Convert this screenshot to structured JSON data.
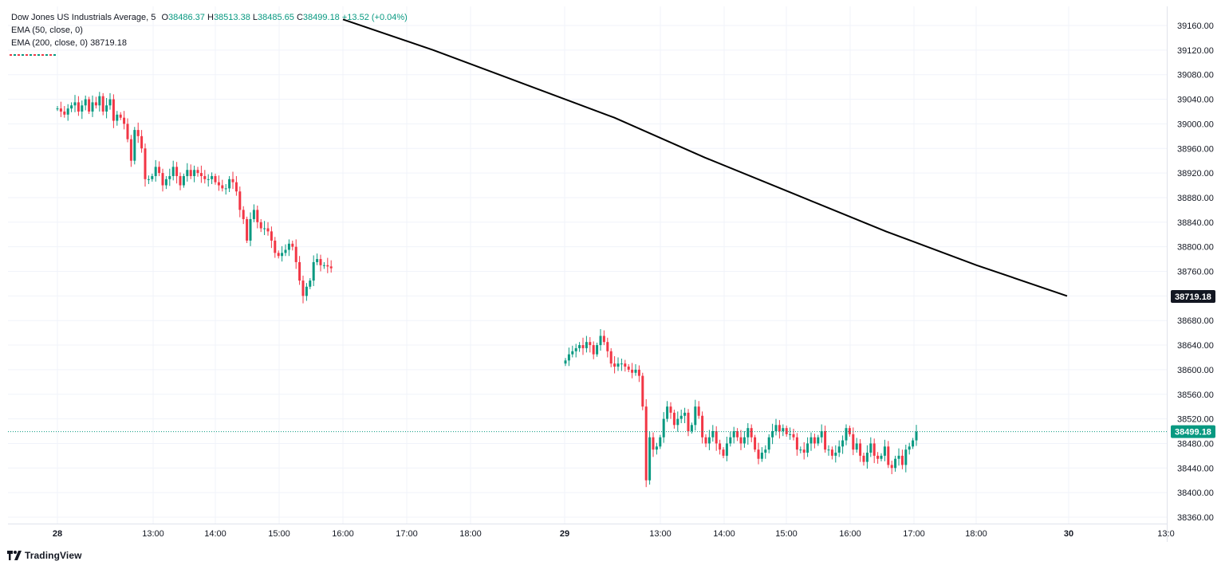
{
  "legend": {
    "symbol": "Dow Jones US Industrials Average, 5",
    "ohlc": {
      "o_label": "O",
      "o": "38486.37",
      "h_label": "H",
      "h": "38513.38",
      "l_label": "L",
      "l": "38485.65",
      "c_label": "C",
      "c": "38499.18",
      "change": "+13.52 (+0.04%)"
    },
    "ema50": {
      "label": "EMA (50, close, 0)",
      "value": ""
    },
    "ema200": {
      "label": "EMA (200, close, 0)",
      "value": "38719.18"
    }
  },
  "branding": {
    "name": "TradingView",
    "icon": "tradingview-logo-icon"
  },
  "colors": {
    "up": "#089981",
    "down": "#f23645",
    "ema200": "#000000",
    "grid": "#f0f3fa",
    "axis_text": "#131722",
    "price_line": "#089981"
  },
  "chart_data": {
    "type": "candlestick",
    "title": "Dow Jones US Industrials Average, 5",
    "ylim": [
      38340,
      39200
    ],
    "y_ticks": [
      38360,
      38400,
      38440,
      38480,
      38520,
      38560,
      38600,
      38640,
      38680,
      38720,
      38760,
      38800,
      38840,
      38880,
      38920,
      38960,
      39000,
      39040,
      39080,
      39120,
      39160
    ],
    "x_ticks": [
      {
        "label": "28",
        "day_label": true,
        "x": 0
      },
      {
        "label": "13:00",
        "x": 1
      },
      {
        "label": "14:00",
        "x": 2
      },
      {
        "label": "15:00",
        "x": 3
      },
      {
        "label": "16:00",
        "x": 4
      },
      {
        "label": "17:00",
        "x": 5
      },
      {
        "label": "18:00",
        "x": 6
      },
      {
        "label": "29",
        "day_label": true,
        "x": 7
      },
      {
        "label": "13:00",
        "x": 8
      },
      {
        "label": "14:00",
        "x": 9
      },
      {
        "label": "15:00",
        "x": 10
      },
      {
        "label": "16:00",
        "x": 11
      },
      {
        "label": "17:00",
        "x": 12
      },
      {
        "label": "18:00",
        "x": 13
      },
      {
        "label": "30",
        "day_label": true,
        "x": 14
      },
      {
        "label": "13:0",
        "x": 15
      }
    ],
    "price_badges": [
      {
        "name": "ema200-price-badge",
        "value": "38719.18",
        "y": 38719.18,
        "style": "dark"
      },
      {
        "name": "last-price-badge",
        "value": "38499.18",
        "y": 38499.18,
        "style": "green"
      }
    ],
    "last_price": 38499.18,
    "day1_closes": [
      39025,
      39020,
      39015,
      39025,
      39030,
      39035,
      39020,
      39030,
      39040,
      39020,
      39035,
      39030,
      39045,
      39020,
      39030,
      39040,
      39005,
      39015,
      39010,
      39000,
      38975,
      38940,
      38990,
      38980,
      38960,
      38910,
      38910,
      38915,
      38930,
      38920,
      38900,
      38910,
      38915,
      38930,
      38915,
      38900,
      38915,
      38925,
      38915,
      38925,
      38920,
      38915,
      38910,
      38910,
      38915,
      38905,
      38900,
      38895,
      38895,
      38910,
      38905,
      38890,
      38860,
      38845,
      38810,
      38845,
      38860,
      38840,
      38830,
      38830,
      38825,
      38810,
      38790,
      38785,
      38790,
      38795,
      38805,
      38800,
      38775,
      38745,
      38720,
      38735,
      38745,
      38775,
      38780,
      38770,
      38770,
      38768,
      38765
    ],
    "day2_closes": [
      38615,
      38625,
      38630,
      38635,
      38640,
      38635,
      38645,
      38640,
      38625,
      38640,
      38655,
      38645,
      38630,
      38610,
      38605,
      38610,
      38610,
      38605,
      38600,
      38595,
      38600,
      38590,
      38540,
      38420,
      38490,
      38470,
      38475,
      38490,
      38520,
      38540,
      38530,
      38510,
      38520,
      38525,
      38530,
      38500,
      38510,
      38540,
      38525,
      38490,
      38480,
      38490,
      38500,
      38480,
      38470,
      38460,
      38480,
      38490,
      38500,
      38490,
      38480,
      38490,
      38505,
      38490,
      38470,
      38455,
      38465,
      38470,
      38490,
      38500,
      38510,
      38500,
      38505,
      38495,
      38495,
      38490,
      38470,
      38470,
      38465,
      38480,
      38490,
      38480,
      38490,
      38500,
      38470,
      38470,
      38460,
      38465,
      38475,
      38485,
      38505,
      38495,
      38470,
      38480,
      38460,
      38450,
      38465,
      38480,
      38460,
      38455,
      38460,
      38475,
      38445,
      38440,
      38455,
      38460,
      38445,
      38470,
      38475,
      38485,
      38499.18
    ],
    "ema200_points": [
      [
        0,
        39170
      ],
      [
        1,
        39120
      ],
      [
        2,
        39065
      ],
      [
        3,
        39010
      ],
      [
        4,
        38945
      ],
      [
        5,
        38885
      ],
      [
        6,
        38825
      ],
      [
        7,
        38770
      ],
      [
        8,
        38720
      ]
    ]
  }
}
